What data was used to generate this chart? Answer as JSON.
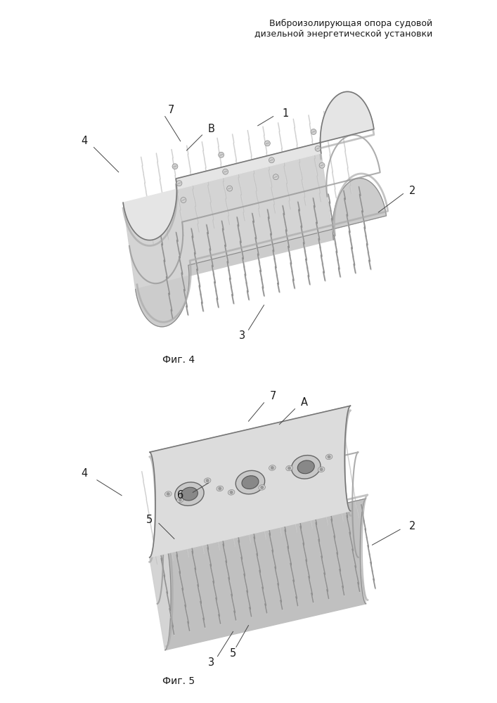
{
  "title_line1": "Виброизолирующая опора судовой",
  "title_line2": "дизельной энергетической установки",
  "fig4_caption": "Фиг. 4",
  "fig5_caption": "Фиг. 5",
  "background_color": "#ffffff",
  "text_color": "#1a1a1a",
  "title_fontsize": 9,
  "caption_fontsize": 10,
  "label_fontsize": 10.5,
  "device_gray_light": "#e8e8e8",
  "device_gray_mid": "#c8c8c8",
  "device_gray_dark": "#a0a0a0",
  "rope_light": "#d0d0d0",
  "rope_mid": "#b0b0b0",
  "rope_dark": "#707070",
  "edge_color": "#555555"
}
